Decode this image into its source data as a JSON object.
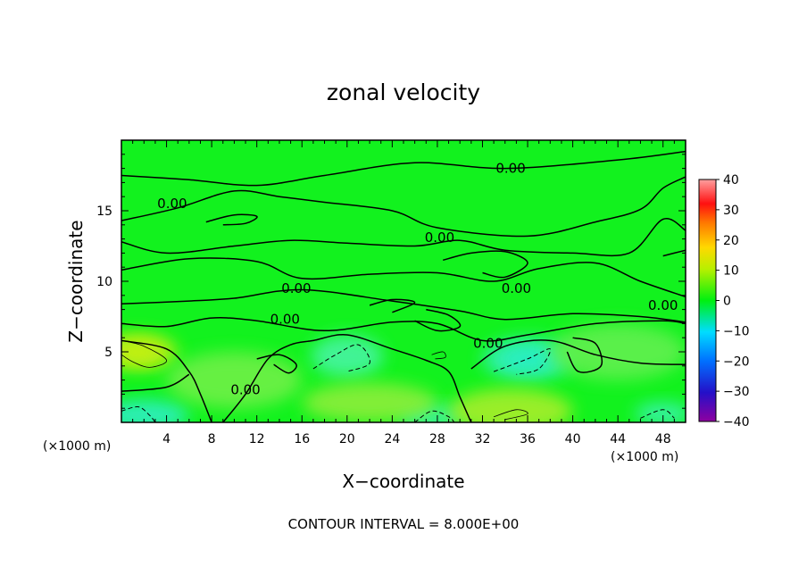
{
  "chart_data": {
    "type": "heatmap",
    "title": "zonal velocity",
    "xlabel": "X−coordinate",
    "ylabel": "Z−coordinate",
    "x_unit_label": "(×1000 m)",
    "y_unit_label": "(×1000 m)",
    "xlim": [
      0,
      50
    ],
    "ylim": [
      0,
      20
    ],
    "x_ticks": [
      4,
      8,
      12,
      16,
      20,
      24,
      28,
      32,
      36,
      40,
      44,
      48
    ],
    "y_ticks": [
      5,
      10,
      15
    ],
    "footer": "CONTOUR INTERVAL = 8.000E+00",
    "colorbar": {
      "min": -40,
      "max": 40,
      "ticks": [
        40,
        30,
        20,
        10,
        0,
        -10,
        -20,
        -30,
        -40
      ],
      "tick_labels": [
        "40",
        "30",
        "20",
        "10",
        "0",
        "−10",
        "−20",
        "−30",
        "−40"
      ]
    },
    "contour_labels": [
      {
        "text": "0.00",
        "x": 34.5,
        "z": 18.0
      },
      {
        "text": "0.00",
        "x": 4.5,
        "z": 15.5
      },
      {
        "text": "0.00",
        "x": 28.2,
        "z": 13.1
      },
      {
        "text": "0.00",
        "x": 15.5,
        "z": 9.5
      },
      {
        "text": "0.00",
        "x": 35.0,
        "z": 9.5
      },
      {
        "text": "0.00",
        "x": 48.0,
        "z": 8.3
      },
      {
        "text": "0.00",
        "x": 14.5,
        "z": 7.3
      },
      {
        "text": "0.00",
        "x": 32.5,
        "z": 5.6
      },
      {
        "text": "0.00",
        "x": 11.0,
        "z": 2.3
      }
    ],
    "zero_contours": [
      [
        [
          0,
          17.5
        ],
        [
          6,
          17.2
        ],
        [
          12,
          16.8
        ],
        [
          18,
          17.5
        ],
        [
          26,
          18.4
        ],
        [
          34,
          18.0
        ],
        [
          44,
          18.6
        ],
        [
          50,
          19.2
        ]
      ],
      [
        [
          0,
          14.3
        ],
        [
          5,
          15.2
        ],
        [
          10,
          16.4
        ],
        [
          14,
          16.0
        ],
        [
          18,
          15.6
        ],
        [
          24,
          15.0
        ],
        [
          28,
          13.8
        ],
        [
          36,
          13.2
        ],
        [
          42,
          14.2
        ],
        [
          46,
          15.1
        ],
        [
          48,
          16.6
        ],
        [
          50,
          17.4
        ]
      ],
      [
        [
          0,
          12.8
        ],
        [
          4,
          12.0
        ],
        [
          10,
          12.5
        ],
        [
          15,
          12.9
        ],
        [
          20,
          12.7
        ],
        [
          26,
          12.5
        ],
        [
          30,
          12.9
        ],
        [
          34,
          12.2
        ],
        [
          40,
          12.0
        ],
        [
          45,
          12.0
        ],
        [
          48,
          14.4
        ],
        [
          50,
          13.6
        ]
      ],
      [
        [
          0,
          10.8
        ],
        [
          6,
          11.6
        ],
        [
          12,
          11.4
        ],
        [
          16,
          10.2
        ],
        [
          22,
          10.5
        ],
        [
          28,
          10.6
        ],
        [
          33,
          10.0
        ],
        [
          37,
          10.9
        ],
        [
          42,
          11.3
        ],
        [
          46,
          10.0
        ],
        [
          50,
          8.9
        ]
      ],
      [
        [
          0,
          8.4
        ],
        [
          6,
          8.6
        ],
        [
          10,
          8.8
        ],
        [
          16,
          9.4
        ],
        [
          24,
          8.6
        ],
        [
          30,
          7.9
        ],
        [
          34,
          7.3
        ],
        [
          40,
          7.7
        ],
        [
          46,
          7.5
        ],
        [
          50,
          7.1
        ]
      ],
      [
        [
          0,
          7.0
        ],
        [
          4,
          6.8
        ],
        [
          8,
          7.4
        ],
        [
          12,
          7.2
        ],
        [
          18,
          6.5
        ],
        [
          24,
          7.1
        ],
        [
          28,
          7.0
        ],
        [
          32,
          5.8
        ],
        [
          36,
          6.2
        ],
        [
          42,
          7.0
        ],
        [
          48,
          7.2
        ],
        [
          50,
          7.0
        ]
      ],
      [
        [
          0,
          5.8
        ],
        [
          4,
          5.2
        ],
        [
          6,
          3.6
        ],
        [
          7,
          2.0
        ],
        [
          8,
          0
        ]
      ],
      [
        [
          9,
          0
        ],
        [
          11,
          2.0
        ],
        [
          13,
          4.5
        ],
        [
          15,
          5.5
        ],
        [
          17,
          5.8
        ],
        [
          20,
          6.2
        ],
        [
          24,
          5.2
        ],
        [
          27,
          4.4
        ],
        [
          29,
          3.6
        ],
        [
          30,
          1.8
        ],
        [
          31,
          0
        ]
      ],
      [
        [
          0,
          2.2
        ],
        [
          4,
          2.5
        ],
        [
          6,
          3.4
        ]
      ],
      [
        [
          12,
          4.5
        ],
        [
          14,
          4.8
        ],
        [
          15.5,
          4.1
        ],
        [
          14.8,
          3.5
        ],
        [
          13.5,
          4.1
        ]
      ],
      [
        [
          31,
          3.8
        ],
        [
          34,
          5.4
        ],
        [
          38,
          5.8
        ],
        [
          42,
          4.8
        ],
        [
          46,
          4.2
        ],
        [
          50,
          4.1
        ]
      ],
      [
        [
          40,
          6.0
        ],
        [
          42,
          5.6
        ],
        [
          42.5,
          4.0
        ],
        [
          40.5,
          3.6
        ],
        [
          39.5,
          5.0
        ]
      ],
      [
        [
          7.5,
          14.2
        ],
        [
          10,
          14.7
        ],
        [
          12,
          14.6
        ],
        [
          11,
          14.1
        ],
        [
          9,
          14.0
        ]
      ],
      [
        [
          27,
          8.0
        ],
        [
          29,
          7.6
        ],
        [
          30,
          6.8
        ],
        [
          28,
          6.5
        ],
        [
          26,
          7.2
        ]
      ],
      [
        [
          22,
          8.3
        ],
        [
          24,
          8.7
        ],
        [
          26,
          8.5
        ],
        [
          24,
          7.8
        ]
      ],
      [
        [
          28.5,
          11.5
        ],
        [
          31,
          12.0
        ],
        [
          34,
          12.1
        ],
        [
          36,
          11.3
        ],
        [
          34,
          10.3
        ],
        [
          32,
          10.6
        ]
      ],
      [
        [
          48,
          11.8
        ],
        [
          50,
          12.2
        ]
      ]
    ],
    "negative_contours": [
      [
        [
          0,
          0.8
        ],
        [
          1.5,
          1.1
        ],
        [
          2.5,
          0.5
        ],
        [
          3,
          0
        ]
      ],
      [
        [
          17,
          3.8
        ],
        [
          19,
          4.8
        ],
        [
          21,
          5.5
        ],
        [
          22,
          4.2
        ],
        [
          20,
          3.6
        ]
      ],
      [
        [
          33,
          3.6
        ],
        [
          36,
          4.5
        ],
        [
          38,
          5.2
        ],
        [
          37,
          3.8
        ],
        [
          35,
          3.4
        ]
      ],
      [
        [
          26,
          0
        ],
        [
          27.5,
          0.8
        ],
        [
          29,
          0.4
        ],
        [
          29.5,
          0
        ]
      ],
      [
        [
          46,
          0.3
        ],
        [
          48,
          0.9
        ],
        [
          49,
          0.3
        ]
      ]
    ],
    "positive_contours": [
      [
        [
          0,
          5.8
        ],
        [
          2,
          5.4
        ],
        [
          4,
          4.4
        ],
        [
          2.5,
          3.9
        ],
        [
          1,
          4.3
        ],
        [
          0,
          4.8
        ]
      ],
      [
        [
          33,
          0.4
        ],
        [
          35,
          0.9
        ],
        [
          36,
          0.6
        ],
        [
          34,
          0.2
        ]
      ],
      [
        [
          27.5,
          4.8
        ],
        [
          28.5,
          5.0
        ],
        [
          28.7,
          4.6
        ],
        [
          27.8,
          4.5
        ]
      ]
    ],
    "field_blobs": [
      {
        "x": 1.5,
        "z": 5.0,
        "rx": 3.5,
        "rz": 1.3,
        "color": "#b7ee1a"
      },
      {
        "x": 1.5,
        "z": 5.0,
        "rx": 2.2,
        "rz": 0.8,
        "color": "#c6f00c"
      },
      {
        "x": 20,
        "z": 4.7,
        "rx": 3.2,
        "rz": 1.5,
        "color": "#46f4a2"
      },
      {
        "x": 36,
        "z": 4.5,
        "rx": 4.0,
        "rz": 1.5,
        "color": "#34f0b0"
      },
      {
        "x": 36,
        "z": 4.5,
        "rx": 2.4,
        "rz": 0.8,
        "color": "#28eec6"
      },
      {
        "x": 2,
        "z": 0.5,
        "rx": 4.0,
        "rz": 1.1,
        "color": "#2eeec4"
      },
      {
        "x": 27.5,
        "z": 0.4,
        "rx": 3.0,
        "rz": 0.8,
        "color": "#3af2b0"
      },
      {
        "x": 48,
        "z": 0.6,
        "rx": 2.5,
        "rz": 0.8,
        "color": "#3af2b0"
      },
      {
        "x": 34.5,
        "z": 0.8,
        "rx": 5.5,
        "rz": 1.6,
        "color": "#a8ee2a"
      },
      {
        "x": 22,
        "z": 1.4,
        "rx": 6.0,
        "rz": 1.4,
        "color": "#8eee3a"
      },
      {
        "x": 10,
        "z": 3.0,
        "rx": 6.0,
        "rz": 2.0,
        "color": "#70f046"
      },
      {
        "x": 44,
        "z": 5.0,
        "rx": 6.0,
        "rz": 2.0,
        "color": "#62f050"
      }
    ]
  }
}
